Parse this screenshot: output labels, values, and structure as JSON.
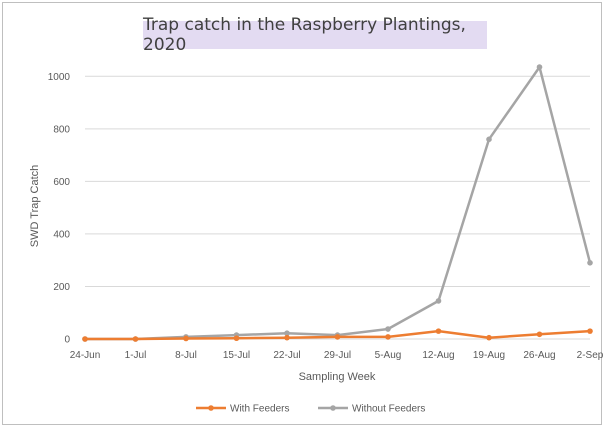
{
  "chart_data": {
    "type": "line",
    "title": "Trap catch in the Raspberry Plantings, 2020",
    "xlabel": "Sampling Week",
    "ylabel": "SWD Trap Catch",
    "categories": [
      "24-Jun",
      "1-Jul",
      "8-Jul",
      "15-Jul",
      "22-Jul",
      "29-Jul",
      "5-Aug",
      "12-Aug",
      "19-Aug",
      "26-Aug",
      "2-Sep"
    ],
    "yticks": [
      "0",
      "200",
      "400",
      "600",
      "800",
      "1000"
    ],
    "ylim": [
      0,
      1100
    ],
    "grid": true,
    "legend": "bottom",
    "series": [
      {
        "name": "With Feeders",
        "color": "#ed7d31",
        "values": [
          0,
          0,
          2,
          3,
          5,
          8,
          8,
          30,
          5,
          18,
          30
        ]
      },
      {
        "name": "Without Feeders",
        "color": "#a5a5a5",
        "values": [
          0,
          0,
          8,
          15,
          22,
          15,
          38,
          145,
          760,
          1035,
          290
        ]
      }
    ]
  }
}
